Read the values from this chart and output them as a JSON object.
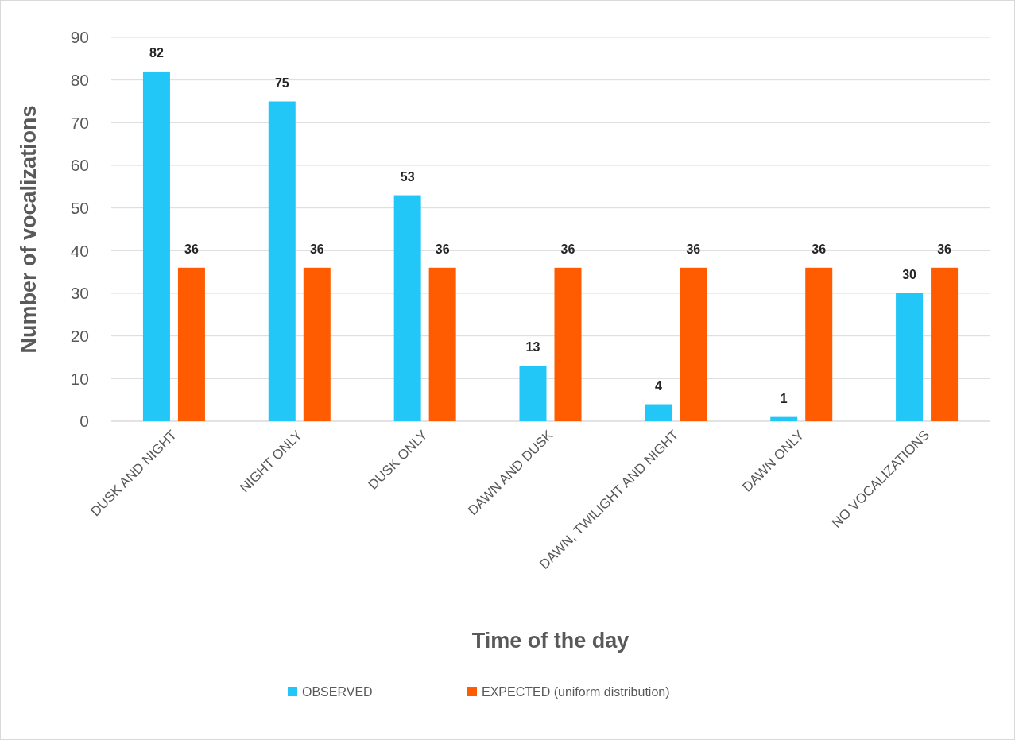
{
  "chart_data": {
    "type": "bar",
    "xlabel": "Time of the day",
    "ylabel": "Number of vocalizations",
    "categories": [
      "DUSK AND NIGHT",
      "NIGHT ONLY",
      "DUSK ONLY",
      "DAWN AND DUSK",
      "DAWN, TWILIGHT AND NIGHT",
      "DAWN ONLY",
      "NO VOCALIZATIONS"
    ],
    "series": [
      {
        "name": "OBSERVED",
        "color": "#22c7f7",
        "values": [
          82,
          75,
          53,
          13,
          4,
          1,
          30
        ]
      },
      {
        "name": "EXPECTED (uniform distribution)",
        "color": "#ff5b00",
        "values": [
          36,
          36,
          36,
          36,
          36,
          36,
          36
        ]
      }
    ],
    "ylim": [
      0,
      90
    ],
    "yticks": [
      0,
      10,
      20,
      30,
      40,
      50,
      60,
      70,
      80,
      90
    ],
    "grid": "y",
    "legend": "bottom",
    "data_labels": true
  }
}
